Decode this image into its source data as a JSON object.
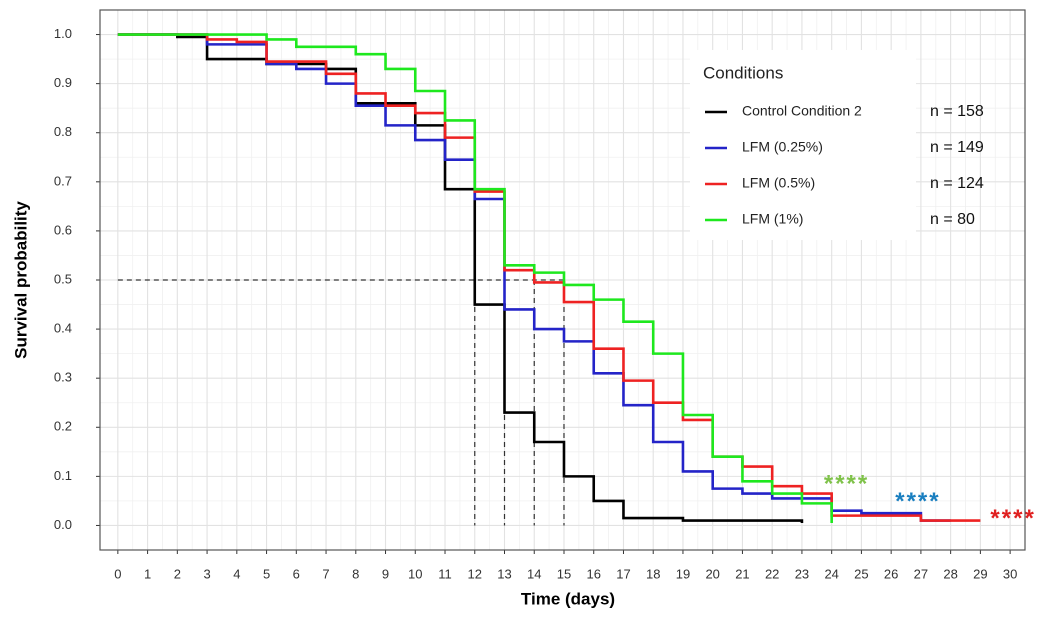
{
  "chart_data": {
    "type": "line",
    "step": "post",
    "x_label": "Time (days)",
    "y_label": "Survival probability",
    "xlim": [
      -0.6,
      30.5
    ],
    "ylim": [
      -0.05,
      1.05
    ],
    "xticks": [
      0,
      1,
      2,
      3,
      4,
      5,
      6,
      7,
      8,
      9,
      10,
      11,
      12,
      13,
      14,
      15,
      16,
      17,
      18,
      19,
      20,
      21,
      22,
      23,
      24,
      25,
      26,
      27,
      28,
      29,
      30
    ],
    "yticks": [
      {
        "value": 0,
        "label": "0.0"
      },
      0.1,
      0.2,
      0.3,
      0.4,
      0.5,
      0.6,
      0.7,
      0.8,
      0.9,
      {
        "value": 1,
        "label": "1.0"
      }
    ],
    "grid": true,
    "legend": "top-right",
    "legend_title": "Conditions",
    "series": [
      {
        "name": "Control Condition 2",
        "n_label": "n = 158",
        "color": "#000000",
        "x": [
          0,
          2,
          3,
          5,
          7,
          8,
          10,
          11,
          12,
          13,
          14,
          15,
          16,
          17,
          19,
          23
        ],
        "values": [
          1,
          0.995,
          0.95,
          0.94,
          0.93,
          0.86,
          0.815,
          0.685,
          0.45,
          0.23,
          0.17,
          0.1,
          0.05,
          0.015,
          0.01,
          0.005
        ]
      },
      {
        "name": "LFM (0.25%)",
        "n_label": "n = 149",
        "color": "#2424c8",
        "x": [
          0,
          3,
          5,
          6,
          7,
          8,
          9,
          10,
          11,
          12,
          13,
          14,
          15,
          16,
          17,
          18,
          19,
          20,
          21,
          22,
          24,
          25,
          27,
          28
        ],
        "values": [
          1,
          0.98,
          0.94,
          0.93,
          0.9,
          0.855,
          0.815,
          0.785,
          0.745,
          0.665,
          0.44,
          0.4,
          0.375,
          0.31,
          0.245,
          0.17,
          0.11,
          0.075,
          0.065,
          0.055,
          0.03,
          0.025,
          0.01,
          0.01
        ]
      },
      {
        "name": "LFM (0.5%)",
        "n_label": "n = 124",
        "color": "#ee2222",
        "x": [
          0,
          3,
          4,
          5,
          7,
          8,
          9,
          10,
          11,
          12,
          13,
          14,
          15,
          16,
          17,
          18,
          19,
          20,
          21,
          22,
          23,
          24,
          27,
          29
        ],
        "values": [
          1,
          0.99,
          0.985,
          0.945,
          0.92,
          0.88,
          0.855,
          0.84,
          0.79,
          0.68,
          0.52,
          0.495,
          0.455,
          0.36,
          0.295,
          0.25,
          0.215,
          0.14,
          0.12,
          0.08,
          0.065,
          0.02,
          0.01,
          0.01
        ]
      },
      {
        "name": "LFM (1%)",
        "n_label": "n = 80",
        "color": "#1ee81e",
        "x": [
          0,
          5,
          6,
          8,
          9,
          10,
          11,
          12,
          13,
          14,
          15,
          16,
          17,
          18,
          19,
          20,
          21,
          22,
          23,
          24
        ],
        "values": [
          1,
          0.99,
          0.975,
          0.96,
          0.93,
          0.885,
          0.825,
          0.685,
          0.53,
          0.515,
          0.49,
          0.46,
          0.415,
          0.35,
          0.225,
          0.14,
          0.09,
          0.065,
          0.045,
          0.005
        ]
      }
    ],
    "median": {
      "y": 0.5,
      "x": [
        12,
        13,
        14,
        15
      ]
    },
    "annotations": [
      {
        "text": "****",
        "x": 24.5,
        "y": 0.09,
        "color": "#7fc24a"
      },
      {
        "text": "****",
        "x": 26.9,
        "y": 0.055,
        "color": "#1a7fc0"
      },
      {
        "text": "****",
        "x": 30.1,
        "y": 0.02,
        "color": "#e02020"
      }
    ]
  }
}
